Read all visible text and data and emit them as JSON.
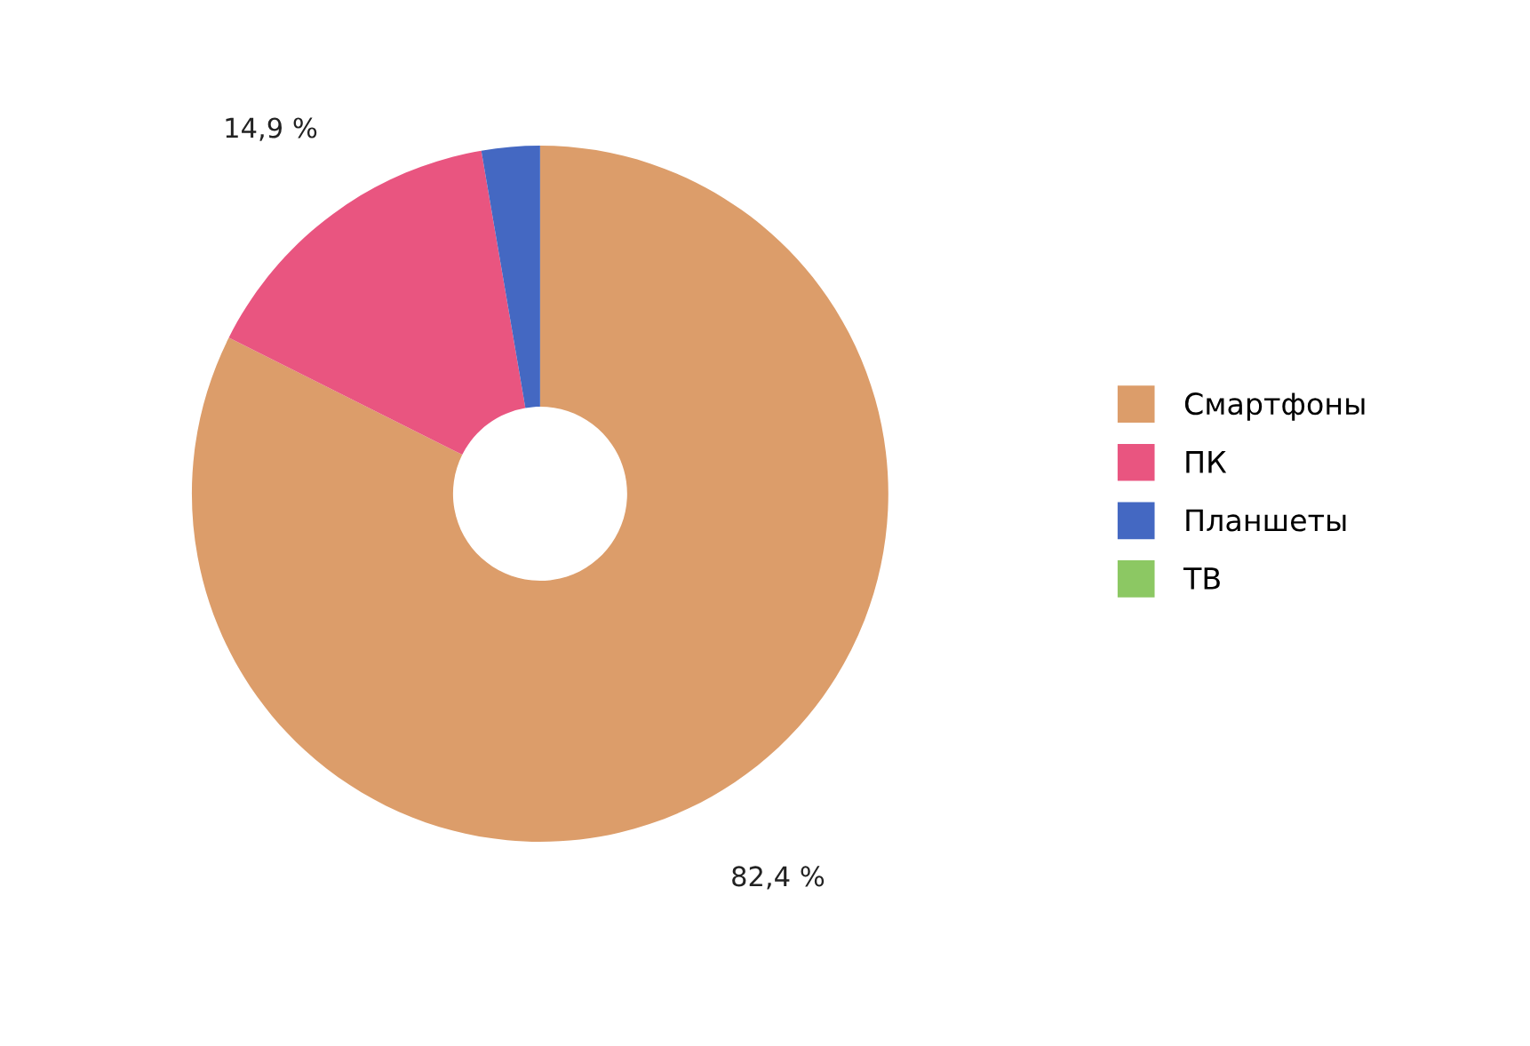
{
  "chart_data": {
    "type": "donut",
    "categories": [
      "Смартфоны",
      "ПК",
      "Планшеты",
      "ТВ"
    ],
    "values": [
      82.4,
      14.9,
      2.7,
      0
    ],
    "value_labels": [
      "82,4 %",
      "14,9 %",
      null,
      null
    ],
    "colors": [
      "#dc9d6a",
      "#e95580",
      "#4468c2",
      "#8cc863"
    ],
    "legend": "right"
  }
}
